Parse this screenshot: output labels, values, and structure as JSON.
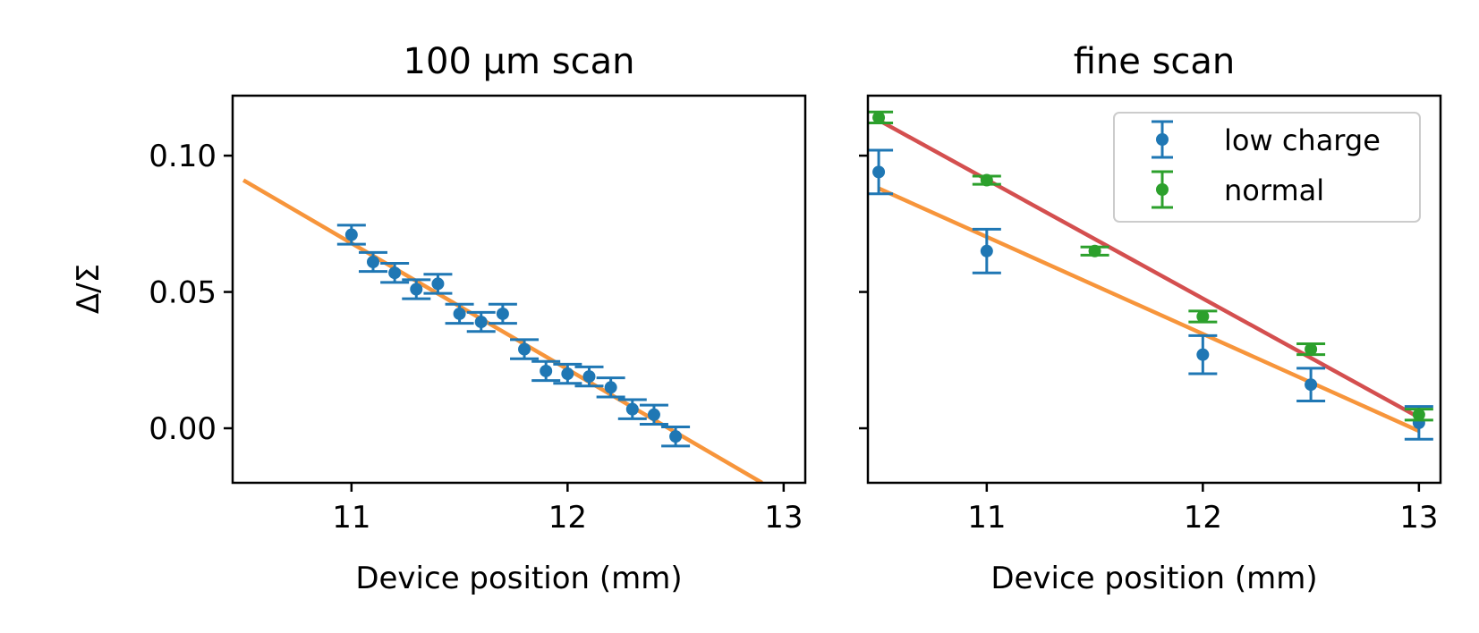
{
  "chart_data": [
    {
      "type": "scatter",
      "title": "100 μm scan",
      "xlabel": "Device position (mm)",
      "ylabel": "Δ/Σ",
      "xlim": [
        10.45,
        13.1
      ],
      "ylim": [
        -0.02,
        0.122
      ],
      "xticks": [
        "11",
        "12",
        "13"
      ],
      "yticks": [
        "0.00",
        "0.05",
        "0.10"
      ],
      "series": [
        {
          "color": "#1f77b4",
          "x": [
            11.0,
            11.1,
            11.2,
            11.3,
            11.4,
            11.5,
            11.6,
            11.7,
            11.8,
            11.9,
            12.0,
            12.1,
            12.2,
            12.3,
            12.4,
            12.5
          ],
          "y": [
            0.071,
            0.061,
            0.057,
            0.051,
            0.053,
            0.042,
            0.039,
            0.042,
            0.029,
            0.021,
            0.02,
            0.019,
            0.015,
            0.007,
            0.005,
            -0.003
          ],
          "yerr": [
            0.0035,
            0.0035,
            0.0035,
            0.0035,
            0.0035,
            0.0035,
            0.0035,
            0.0035,
            0.0035,
            0.0035,
            0.0035,
            0.0035,
            0.0035,
            0.0035,
            0.0035,
            0.0035
          ]
        }
      ],
      "fits": [
        {
          "color": "#f7953b",
          "x": [
            10.5,
            12.9
          ],
          "y": [
            0.091,
            -0.02
          ]
        }
      ]
    },
    {
      "type": "scatter",
      "title": "fine scan",
      "xlabel": "Device position (mm)",
      "ylabel": "",
      "xlim": [
        10.45,
        13.1
      ],
      "ylim": [
        -0.02,
        0.122
      ],
      "xticks": [
        "11",
        "12",
        "13"
      ],
      "yticks": [],
      "legend": "top-right",
      "series": [
        {
          "name": "low charge",
          "color": "#1f77b4",
          "x": [
            10.5,
            11.0,
            12.0,
            12.5,
            13.0
          ],
          "y": [
            0.094,
            0.065,
            0.027,
            0.016,
            0.002
          ],
          "yerr": [
            0.008,
            0.008,
            0.007,
            0.006,
            0.006
          ]
        },
        {
          "name": "normal",
          "color": "#2ca02c",
          "x": [
            10.5,
            11.0,
            11.5,
            12.0,
            12.5,
            13.0
          ],
          "y": [
            0.114,
            0.091,
            0.065,
            0.041,
            0.029,
            0.005
          ],
          "yerr": [
            0.002,
            0.0015,
            0.0015,
            0.002,
            0.002,
            0.002
          ]
        }
      ],
      "fits": [
        {
          "color": "#f7953b",
          "x": [
            10.5,
            13.0
          ],
          "y": [
            0.088,
            -0.001
          ]
        },
        {
          "color": "#d44f4f",
          "x": [
            10.5,
            13.0
          ],
          "y": [
            0.113,
            0.004
          ]
        }
      ]
    }
  ]
}
